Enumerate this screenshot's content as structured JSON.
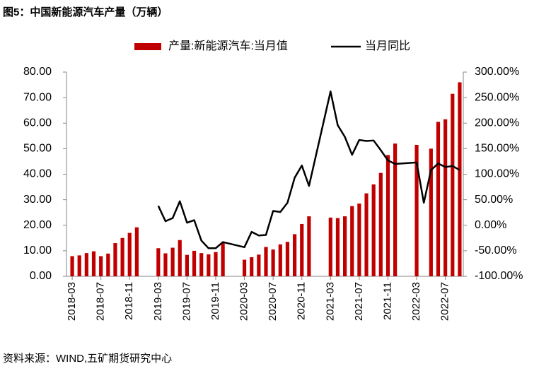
{
  "chart_data": {
    "type": "bar",
    "title": "图5：中国新能源汽车产量（万辆）",
    "source": "资料来源：WIND,五矿期货研究中心",
    "categories": [
      "2018-03",
      null,
      null,
      null,
      "2018-07",
      null,
      null,
      null,
      "2018-11",
      null,
      null,
      null,
      "2019-03",
      null,
      null,
      null,
      "2019-07",
      null,
      null,
      null,
      "2019-11",
      null,
      null,
      null,
      "2020-03",
      null,
      null,
      null,
      "2020-07",
      null,
      null,
      null,
      "2020-11",
      null,
      null,
      null,
      "2021-03",
      null,
      null,
      null,
      "2021-07",
      null,
      null,
      null,
      "2021-11",
      null,
      null,
      null,
      "2022-03",
      null,
      null,
      null,
      "2022-07",
      null,
      null
    ],
    "connect_nulls": true,
    "series": [
      {
        "name": "产量:新能源汽车:当月值",
        "type": "bar",
        "color": "#c00000",
        "values": [
          7.9,
          8.2,
          9.1,
          9.8,
          7.9,
          8.9,
          13.0,
          15.0,
          17.0,
          19.2,
          null,
          null,
          11.0,
          9.0,
          11.2,
          14.2,
          8.4,
          10.0,
          9.1,
          8.6,
          9.5,
          13.3,
          null,
          null,
          6.5,
          7.5,
          8.5,
          11.5,
          10.5,
          12.5,
          13.5,
          16.5,
          20.5,
          23.5,
          null,
          null,
          23.0,
          22.8,
          23.5,
          27.5,
          28.5,
          32.5,
          36.0,
          40.5,
          47.5,
          52.0,
          null,
          null,
          51.5,
          null,
          50.0,
          60.5,
          61.5,
          71.5,
          76.0
        ]
      },
      {
        "name": "当月同比",
        "type": "line",
        "color": "#000000",
        "axis": "y2",
        "values": [
          null,
          null,
          null,
          null,
          null,
          null,
          null,
          null,
          null,
          null,
          null,
          null,
          38,
          8,
          14,
          47,
          5,
          10,
          -30,
          -45,
          -45,
          -33,
          null,
          null,
          -43,
          -13,
          -20,
          -19,
          28,
          26,
          44,
          93,
          117,
          77,
          null,
          null,
          262,
          196,
          173,
          138,
          167,
          165,
          166,
          147,
          127,
          120,
          null,
          null,
          123,
          44,
          108,
          121,
          114,
          116,
          108
        ]
      }
    ],
    "ylim": [
      0,
      80
    ],
    "yticks": [
      {
        "value": 0,
        "label": "0.00"
      },
      {
        "value": 10,
        "label": "10.00"
      },
      {
        "value": 20,
        "label": "20.00"
      },
      {
        "value": 30,
        "label": "30.00"
      },
      {
        "value": 40,
        "label": "40.00"
      },
      {
        "value": 50,
        "label": "50.00"
      },
      {
        "value": 60,
        "label": "60.00"
      },
      {
        "value": 70,
        "label": "70.00"
      },
      {
        "value": 80,
        "label": "80.00"
      }
    ],
    "y2lim": [
      -100,
      300
    ],
    "y2ticks": [
      {
        "value": -100,
        "label": "-100.00%"
      },
      {
        "value": -50,
        "label": "-50.00%"
      },
      {
        "value": 0,
        "label": "0.00%"
      },
      {
        "value": 50,
        "label": "50.00%"
      },
      {
        "value": 100,
        "label": "100.00%"
      },
      {
        "value": 150,
        "label": "150.00%"
      },
      {
        "value": 200,
        "label": "200.00%"
      },
      {
        "value": 250,
        "label": "250.00%"
      },
      {
        "value": 300,
        "label": "300.00%"
      }
    ],
    "legend": "top"
  }
}
